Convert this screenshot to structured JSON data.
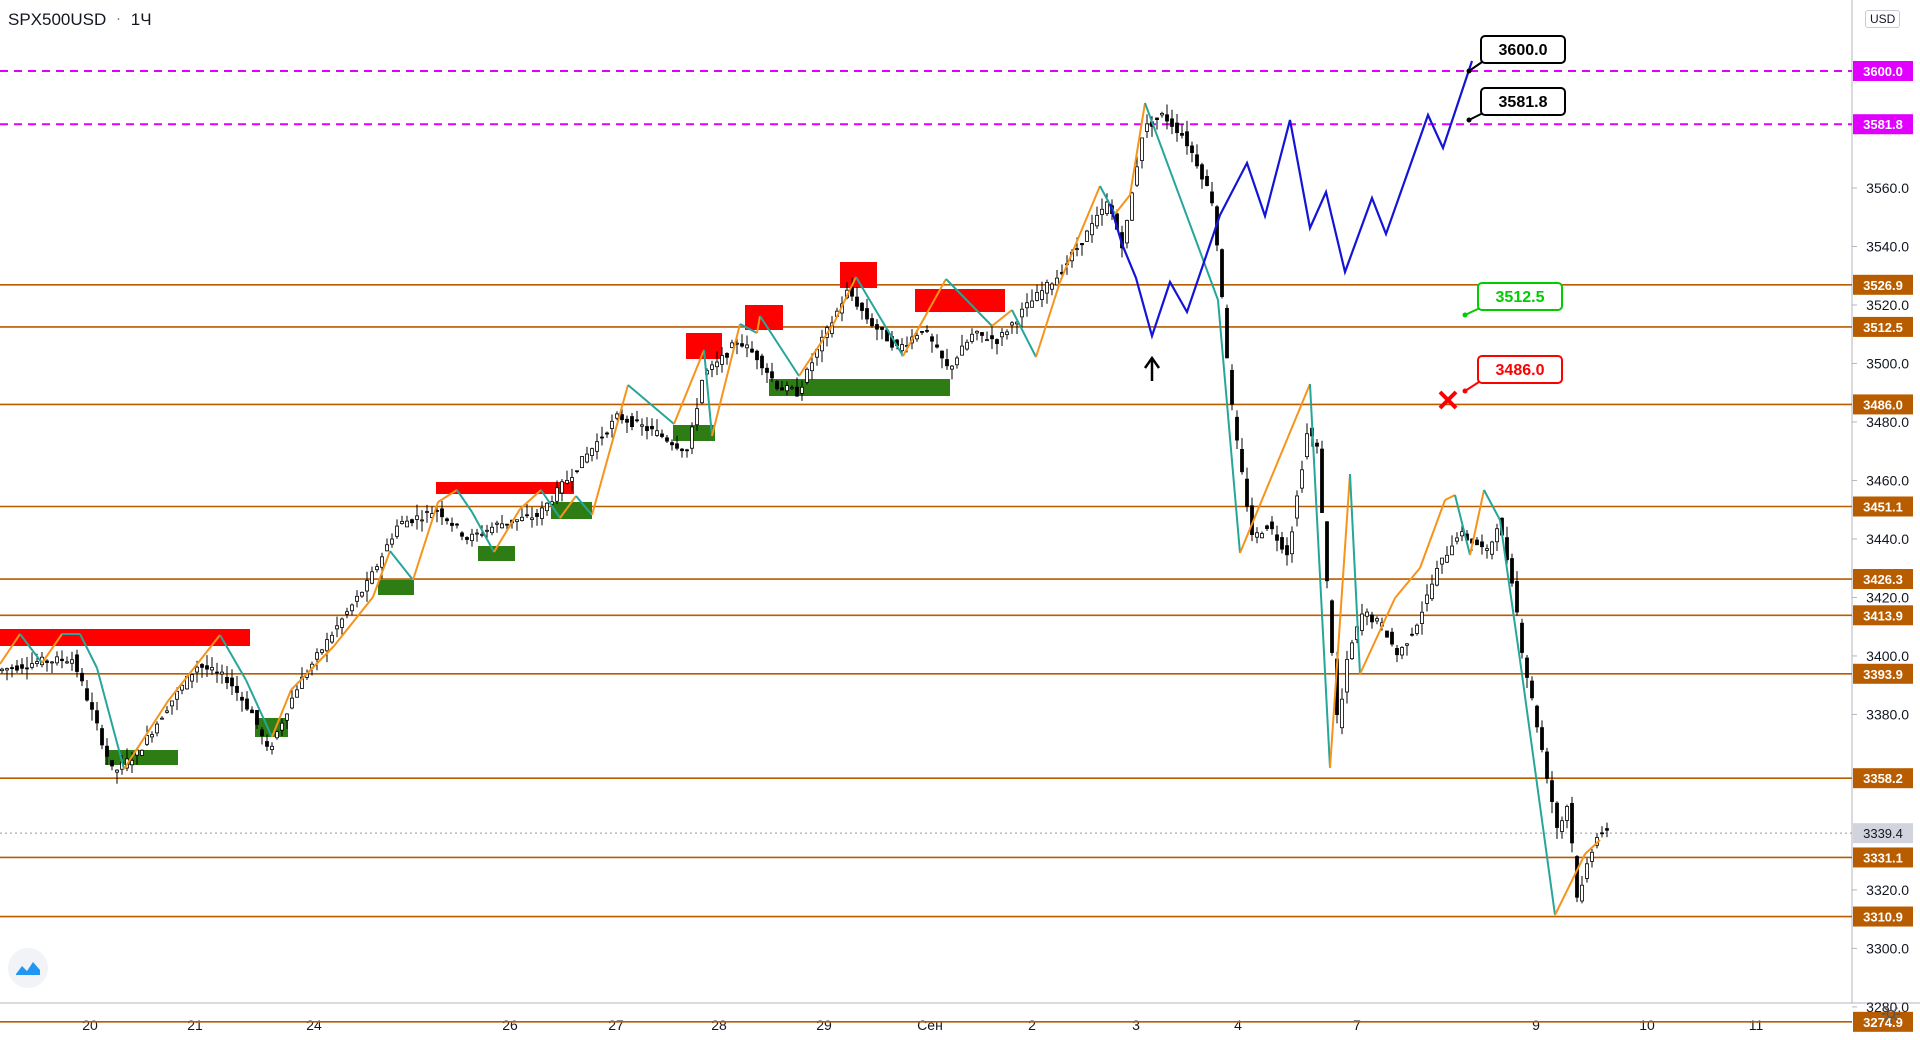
{
  "header": {
    "symbol": "SPX500USD",
    "separator": "·",
    "timeframe": "1Ч"
  },
  "currency_button": "USD",
  "price_axis": {
    "ticks": [
      "3560.0",
      "3540.0",
      "3520.0",
      "3500.0",
      "3480.0",
      "3460.0",
      "3440.0",
      "3420.0",
      "3400.0",
      "3380.0",
      "3320.0",
      "3300.0",
      "3280.0"
    ],
    "current_price": "3339.4"
  },
  "time_axis": {
    "ticks": [
      "20",
      "21",
      "24",
      "26",
      "27",
      "28",
      "29",
      "Сен",
      "2",
      "3",
      "4",
      "7",
      "9",
      "10",
      "11"
    ]
  },
  "levels": [
    {
      "label": "3600.0",
      "color": "#e100ff",
      "style": "dashed"
    },
    {
      "label": "3581.8",
      "color": "#e100ff",
      "style": "dashed"
    },
    {
      "label": "3526.9",
      "color": "#b85c00",
      "style": "solid"
    },
    {
      "label": "3512.5",
      "color": "#b85c00",
      "style": "solid"
    },
    {
      "label": "3486.0",
      "color": "#b85c00",
      "style": "solid"
    },
    {
      "label": "3451.1",
      "color": "#b85c00",
      "style": "solid"
    },
    {
      "label": "3426.3",
      "color": "#b85c00",
      "style": "solid"
    },
    {
      "label": "3413.9",
      "color": "#b85c00",
      "style": "solid"
    },
    {
      "label": "3393.9",
      "color": "#b85c00",
      "style": "solid"
    },
    {
      "label": "3358.2",
      "color": "#b85c00",
      "style": "solid"
    },
    {
      "label": "3331.1",
      "color": "#b85c00",
      "style": "solid"
    },
    {
      "label": "3310.9",
      "color": "#b85c00",
      "style": "solid"
    },
    {
      "label": "3274.9",
      "color": "#b85c00",
      "style": "solid"
    }
  ],
  "callouts": [
    {
      "text": "3600.0",
      "color": "#000000",
      "bg": "#ffffff"
    },
    {
      "text": "3581.8",
      "color": "#000000",
      "bg": "#ffffff"
    },
    {
      "text": "3512.5",
      "color": "#00cc00",
      "bg": "#ffffff"
    },
    {
      "text": "3486.0",
      "color": "#ff0000",
      "bg": "#ffffff"
    }
  ],
  "colors": {
    "up": "#26a69a",
    "down": "#ef5350",
    "zigzag_up": "#f7931a",
    "zigzag_down": "#26a69a",
    "forecast": "#1414d8",
    "supply": "#ff0000",
    "demand": "#2e7d14"
  },
  "icons": {
    "gear": "gear-icon",
    "logo": "tradingview-logo-icon",
    "arrow": "up-arrow-icon",
    "cross": "x-mark-icon"
  }
}
